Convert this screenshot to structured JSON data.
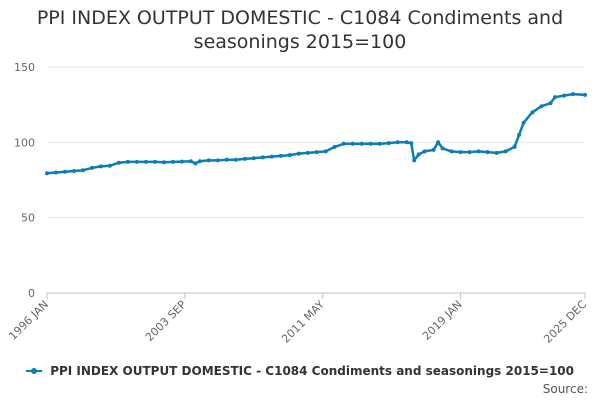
{
  "chart_data": {
    "type": "line",
    "title": "PPI INDEX OUTPUT DOMESTIC - C1084 Condiments and seasonings 2015=100",
    "xlabel": "",
    "ylabel": "",
    "ylim": [
      0,
      150
    ],
    "yticks": [
      0,
      50,
      100,
      150
    ],
    "xrange": [
      "1996 JAN",
      "2025 DEC"
    ],
    "xticks": [
      "1996 JAN",
      "2003 SEP",
      "2011 MAY",
      "2019 JAN",
      "2025 DEC"
    ],
    "grid": true,
    "legend_position": "bottom",
    "color": "#0b7eb4",
    "series": [
      {
        "name": "PPI INDEX OUTPUT DOMESTIC - C1084 Condiments and seasonings 2015=100",
        "points": [
          [
            "1996-01",
            79.5
          ],
          [
            "1996-07",
            80.0
          ],
          [
            "1997-01",
            80.5
          ],
          [
            "1997-07",
            81.0
          ],
          [
            "1998-01",
            81.5
          ],
          [
            "1998-07",
            83.0
          ],
          [
            "1999-01",
            84.0
          ],
          [
            "1999-07",
            84.5
          ],
          [
            "2000-01",
            86.5
          ],
          [
            "2000-07",
            87.0
          ],
          [
            "2001-01",
            87.0
          ],
          [
            "2001-07",
            87.0
          ],
          [
            "2002-01",
            87.0
          ],
          [
            "2002-07",
            86.8
          ],
          [
            "2003-01",
            87.0
          ],
          [
            "2003-07",
            87.2
          ],
          [
            "2004-01",
            87.5
          ],
          [
            "2004-04",
            86.0
          ],
          [
            "2004-07",
            87.5
          ],
          [
            "2005-01",
            88.0
          ],
          [
            "2005-07",
            88.0
          ],
          [
            "2006-01",
            88.5
          ],
          [
            "2006-07",
            88.5
          ],
          [
            "2007-01",
            89.0
          ],
          [
            "2007-07",
            89.5
          ],
          [
            "2008-01",
            90.0
          ],
          [
            "2008-07",
            90.5
          ],
          [
            "2009-01",
            91.0
          ],
          [
            "2009-07",
            91.5
          ],
          [
            "2010-01",
            92.5
          ],
          [
            "2010-07",
            93.0
          ],
          [
            "2011-01",
            93.5
          ],
          [
            "2011-07",
            94.0
          ],
          [
            "2012-01",
            97.0
          ],
          [
            "2012-07",
            99.0
          ],
          [
            "2013-01",
            99.0
          ],
          [
            "2013-07",
            99.0
          ],
          [
            "2014-01",
            99.0
          ],
          [
            "2014-07",
            99.0
          ],
          [
            "2015-01",
            99.5
          ],
          [
            "2015-07",
            100.0
          ],
          [
            "2016-01",
            100.0
          ],
          [
            "2016-04",
            99.5
          ],
          [
            "2016-06",
            88.0
          ],
          [
            "2016-09",
            92.0
          ],
          [
            "2017-01",
            94.0
          ],
          [
            "2017-07",
            95.0
          ],
          [
            "2017-10",
            100.0
          ],
          [
            "2018-01",
            96.0
          ],
          [
            "2018-07",
            94.0
          ],
          [
            "2019-01",
            93.5
          ],
          [
            "2019-07",
            93.5
          ],
          [
            "2020-01",
            94.0
          ],
          [
            "2020-07",
            93.5
          ],
          [
            "2021-01",
            93.0
          ],
          [
            "2021-07",
            94.0
          ],
          [
            "2022-01",
            97.0
          ],
          [
            "2022-04",
            105.0
          ],
          [
            "2022-07",
            113.0
          ],
          [
            "2023-01",
            120.0
          ],
          [
            "2023-07",
            124.0
          ],
          [
            "2024-01",
            126.0
          ],
          [
            "2024-04",
            130.0
          ],
          [
            "2024-10",
            131.0
          ],
          [
            "2025-04",
            132.0
          ],
          [
            "2025-12",
            131.5
          ]
        ]
      }
    ]
  },
  "legend": {
    "label": "PPI INDEX OUTPUT DOMESTIC - C1084 Condiments and seasonings 2015=100"
  },
  "source_label": "Source:"
}
